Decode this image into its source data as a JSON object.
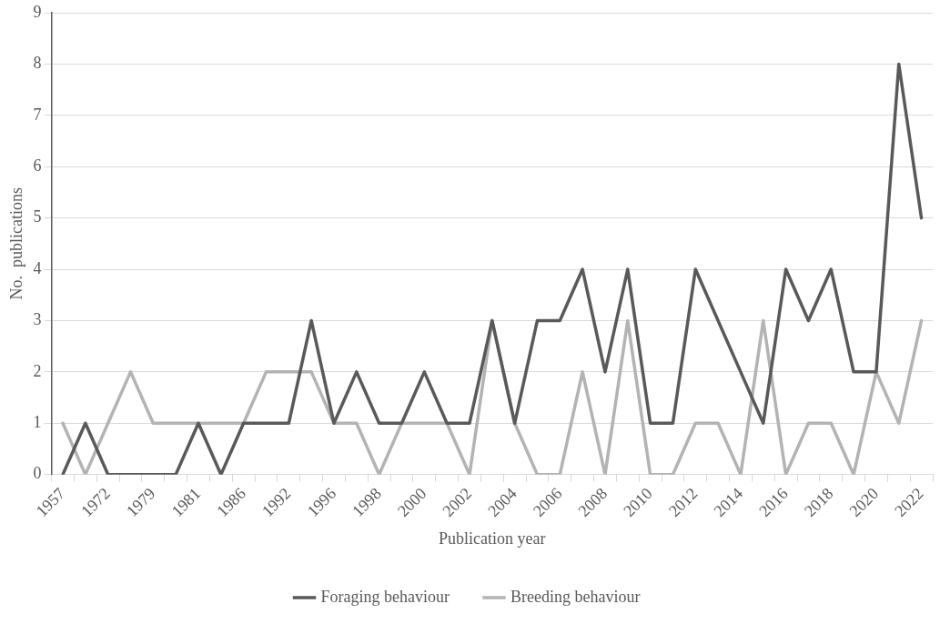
{
  "chart_data": {
    "type": "line",
    "xlabel": "Publication year",
    "ylabel": "No.  publications",
    "categories": [
      "1957",
      null,
      "1972",
      null,
      "1979",
      null,
      "1981",
      null,
      "1986",
      null,
      "1992",
      null,
      "1996",
      null,
      "1998",
      null,
      "2000",
      null,
      "2002",
      null,
      "2004",
      null,
      "2006",
      null,
      "2008",
      null,
      "2010",
      null,
      "2012",
      null,
      "2014",
      null,
      "2016",
      null,
      "2018",
      null,
      "2020",
      null,
      "2022"
    ],
    "series": [
      {
        "name": "Foraging behaviour",
        "color": "#595959",
        "values": [
          0,
          1,
          0,
          0,
          0,
          0,
          1,
          0,
          1,
          1,
          1,
          3,
          1,
          2,
          1,
          1,
          2,
          1,
          1,
          3,
          1,
          3,
          3,
          4,
          2,
          4,
          1,
          1,
          4,
          3,
          2,
          1,
          4,
          3,
          4,
          2,
          2,
          8,
          5
        ]
      },
      {
        "name": "Breeding behaviour",
        "color": "#b3b3b3",
        "values": [
          1,
          0,
          1,
          2,
          1,
          1,
          1,
          1,
          1,
          2,
          2,
          2,
          1,
          1,
          0,
          1,
          1,
          1,
          0,
          3,
          1,
          0,
          0,
          2,
          0,
          3,
          0,
          0,
          1,
          1,
          0,
          3,
          0,
          1,
          1,
          0,
          2,
          1,
          3
        ]
      }
    ],
    "ylim": [
      0,
      9
    ],
    "yticks": [
      0,
      1,
      2,
      3,
      4,
      5,
      6,
      7,
      8,
      9
    ],
    "grid": "y",
    "legend": "bottom",
    "marker": "none",
    "line_style": "solid"
  }
}
